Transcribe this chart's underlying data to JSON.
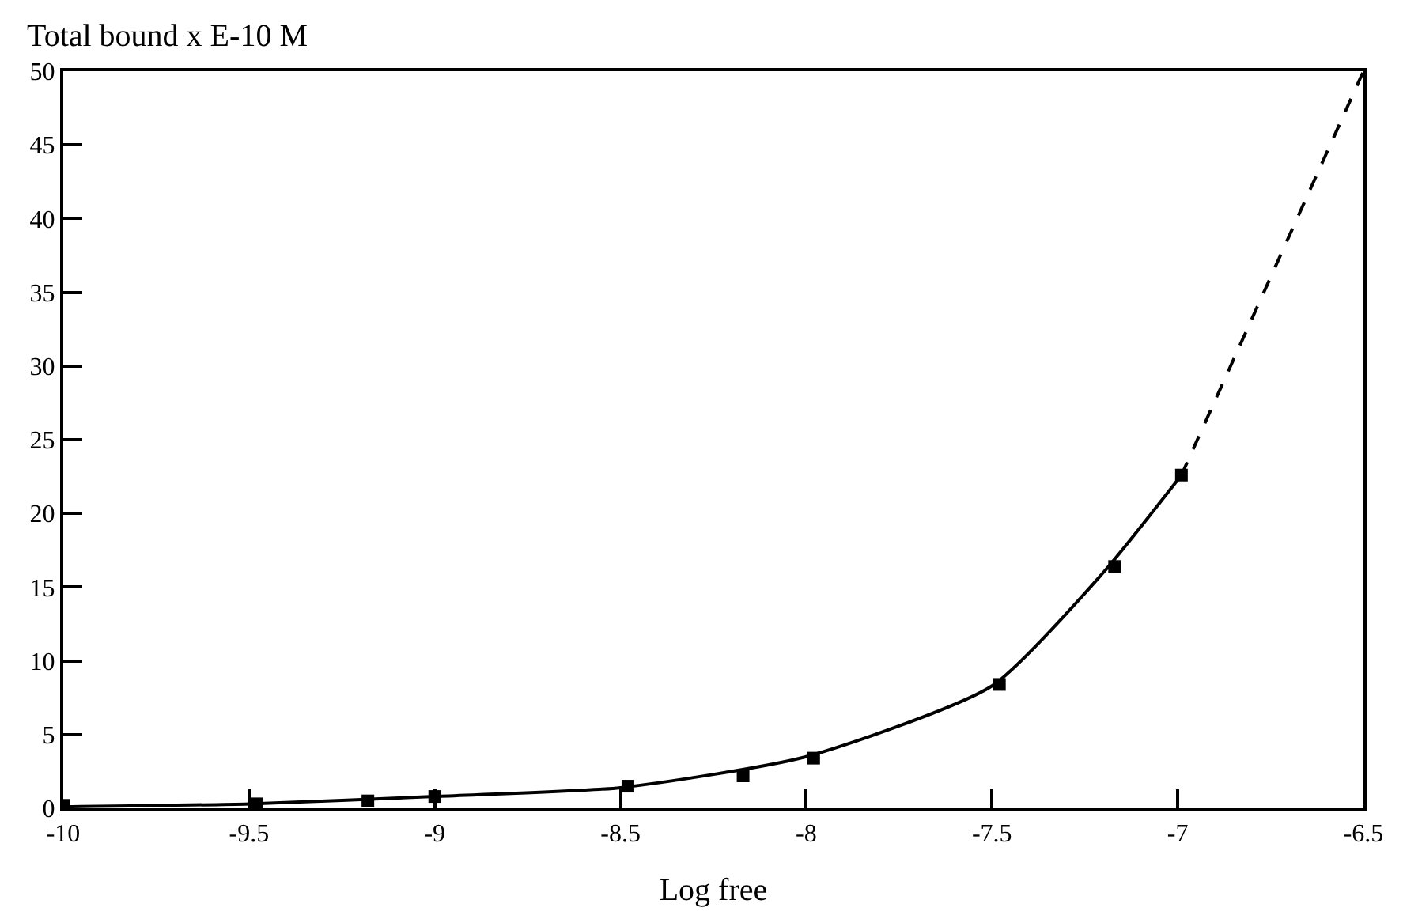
{
  "chart_data": {
    "type": "scatter",
    "ylabel": "Total bound x E-10 M",
    "xlabel": "Log free",
    "xlim": [
      -10,
      -6.5
    ],
    "xticks": [
      -10,
      -9.5,
      -9,
      -8.5,
      -8,
      -7.5,
      -7,
      -6.5
    ],
    "ylim": [
      0,
      50
    ],
    "yticks": [
      0,
      5,
      10,
      15,
      20,
      25,
      30,
      35,
      40,
      45,
      50
    ],
    "series": [
      {
        "marker": "square",
        "color": "#000000",
        "x": [
          -10,
          -9.48,
          -9.18,
          -9,
          -8.48,
          -8.17,
          -7.98,
          -7.48,
          -7.17,
          -6.99
        ],
        "values": [
          0.2,
          0.3,
          0.5,
          0.8,
          1.5,
          2.2,
          3.4,
          8.4,
          16.4,
          22.6
        ]
      },
      {
        "type": "line",
        "marker": "none",
        "line_style": "solid",
        "color": "#000000",
        "x": [
          -10,
          -9.5,
          -9,
          -8.5,
          -8,
          -7.5,
          -7.2,
          -6.99
        ],
        "values": [
          0.1,
          0.3,
          0.8,
          1.4,
          3.5,
          8.3,
          16.0,
          22.6
        ]
      },
      {
        "type": "line",
        "marker": "none",
        "line_style": "dashed",
        "color": "#000000",
        "x": [
          -6.99,
          -6.5
        ],
        "values": [
          22.6,
          50
        ]
      }
    ]
  }
}
